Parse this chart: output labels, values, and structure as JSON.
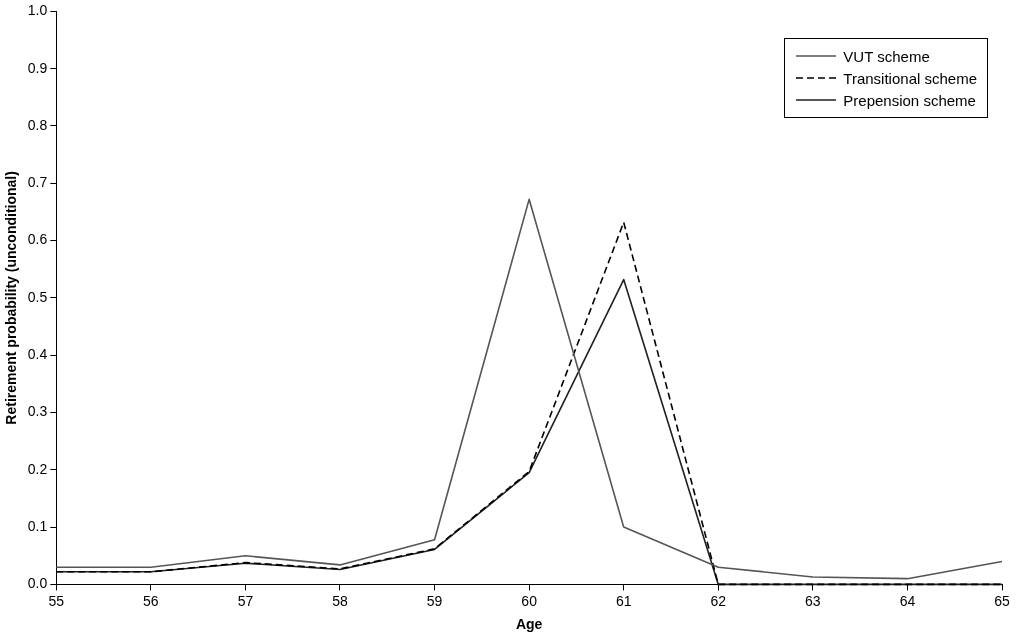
{
  "chart_data": {
    "type": "line",
    "xlabel": "Age",
    "ylabel": "Retirement probability (unconditional)",
    "x": [
      55,
      56,
      57,
      58,
      59,
      60,
      61,
      62,
      63,
      64,
      65
    ],
    "series": [
      {
        "name": "VUT scheme",
        "color": "#555555",
        "line_style": "solid",
        "values": [
          0.03,
          0.03,
          0.05,
          0.034,
          0.078,
          0.672,
          0.1,
          0.03,
          0.013,
          0.01,
          0.04
        ]
      },
      {
        "name": "Transitional scheme",
        "color": "#000000",
        "line_style": "dashed",
        "values": [
          0.022,
          0.022,
          0.038,
          0.027,
          0.062,
          0.197,
          0.632,
          0,
          0,
          0,
          0
        ]
      },
      {
        "name": "Prepension scheme",
        "color": "#202020",
        "line_style": "solid",
        "values": [
          0.022,
          0.022,
          0.037,
          0.026,
          0.061,
          0.195,
          0.532,
          0,
          0,
          0,
          0
        ]
      }
    ],
    "xlim": [
      55,
      65
    ],
    "xticks": [
      55,
      56,
      57,
      58,
      59,
      60,
      61,
      62,
      63,
      64,
      65
    ],
    "ylim": [
      0,
      1
    ],
    "yticks": [
      {
        "value": 0,
        "label": "0.0"
      },
      0.1,
      0.2,
      0.3,
      0.4,
      0.5,
      0.6,
      0.7,
      0.8,
      0.9,
      {
        "value": 1,
        "label": "1.0"
      }
    ],
    "grid": false,
    "legend": "top right",
    "marker": "none"
  }
}
